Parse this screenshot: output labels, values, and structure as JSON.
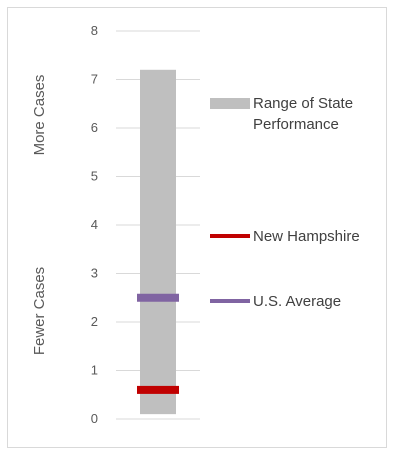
{
  "chart_data": {
    "type": "bar",
    "title": "",
    "xlabel": "",
    "ylabel": "",
    "ylim": [
      0,
      8
    ],
    "yticks": [
      "0",
      "1",
      "2",
      "3",
      "4",
      "5",
      "6",
      "7",
      "8"
    ],
    "grid": true,
    "range": {
      "name": "Range of State Performance",
      "min": 0.1,
      "max": 7.2,
      "color": "#bfbfbf"
    },
    "markers": [
      {
        "name": "New Hampshire",
        "value": 0.6,
        "color": "#c00000"
      },
      {
        "name": "U.S. Average",
        "value": 2.5,
        "color": "#8064a2"
      }
    ],
    "axis_annotations": {
      "upper": "More Cases",
      "lower": "Fewer Cases"
    },
    "legend": {
      "placement": "right",
      "range_label_lines": [
        "Range of State",
        "Performance"
      ]
    }
  }
}
